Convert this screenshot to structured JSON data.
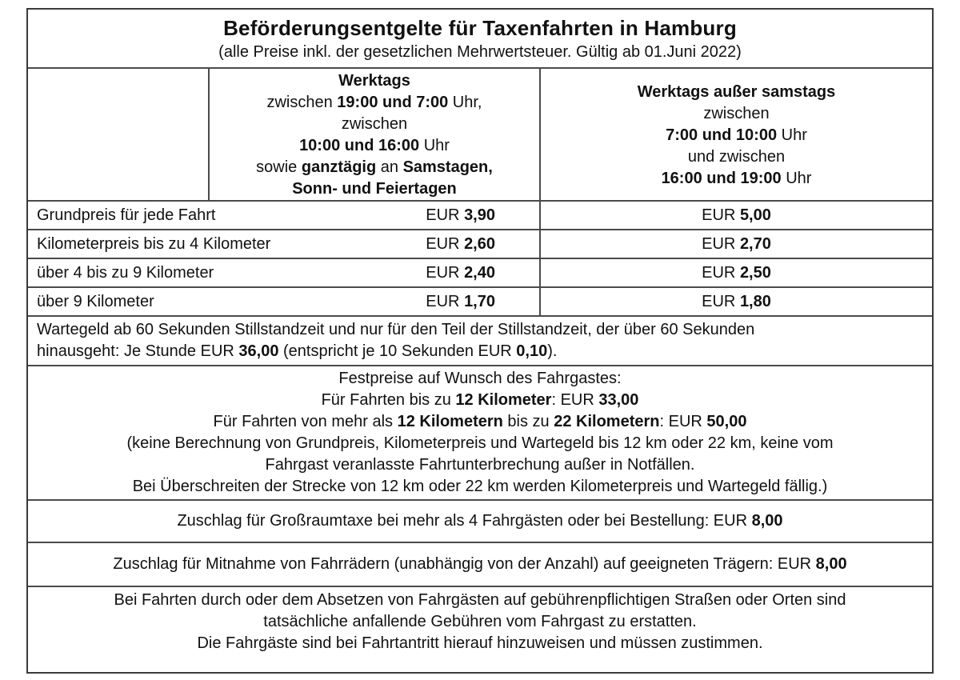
{
  "title": "Beförderungsentgelte für Taxenfahrten in Hamburg",
  "subtitle": "(alle Preise inkl. der gesetzlichen Mehrwertsteuer. Gültig ab 01.Juni 2022)",
  "labels": {
    "currency": "EUR"
  },
  "header": {
    "tariff1_lines": [
      [
        [
          "Werktags",
          1
        ]
      ],
      [
        [
          "zwischen ",
          0
        ],
        [
          "19:00 und 7:00",
          1
        ],
        [
          " Uhr,",
          0
        ]
      ],
      [
        [
          "zwischen",
          0
        ]
      ],
      [
        [
          "10:00 und 16:00",
          1
        ],
        [
          " Uhr",
          0
        ]
      ],
      [
        [
          "sowie ",
          0
        ],
        [
          "ganztägig",
          1
        ],
        [
          " an ",
          0
        ],
        [
          "Samstagen,",
          1
        ]
      ],
      [
        [
          "Sonn- und Feiertagen",
          1
        ]
      ]
    ],
    "tariff2_lines": [
      [
        [
          "Werktags außer samstags",
          1
        ]
      ],
      [
        [
          "zwischen",
          0
        ]
      ],
      [
        [
          "7:00 und 10:00",
          1
        ],
        [
          " Uhr",
          0
        ]
      ],
      [
        [
          "und zwischen",
          0
        ]
      ],
      [
        [
          "16:00 und 19:00",
          1
        ],
        [
          " Uhr",
          0
        ]
      ]
    ]
  },
  "fare_rows": [
    {
      "label": "Grundpreis für jede Fahrt",
      "tariff1": "3,90",
      "tariff2": "5,00"
    },
    {
      "label": "Kilometerpreis bis zu 4 Kilometer",
      "tariff1": "2,60",
      "tariff2": "2,70"
    },
    {
      "label": "über 4 bis zu 9 Kilometer",
      "tariff1": "2,40",
      "tariff2": "2,50"
    },
    {
      "label": "über 9 Kilometer",
      "tariff1": "1,70",
      "tariff2": "1,80"
    }
  ],
  "waiting_fee": {
    "lines": [
      [
        [
          "Wartegeld ab 60 Sekunden Stillstandzeit und nur für den Teil der Stillstandzeit, der über 60 Sekunden",
          0
        ]
      ],
      [
        [
          "hinausgeht: Je Stunde EUR ",
          0
        ],
        [
          "36,00",
          1
        ],
        [
          " (entspricht je 10 Sekunden EUR ",
          0
        ],
        [
          "0,10",
          1
        ],
        [
          ").",
          0
        ]
      ]
    ]
  },
  "fixed_prices": {
    "lines": [
      [
        [
          "Festpreise auf Wunsch des Fahrgastes:",
          0
        ]
      ],
      [
        [
          "Für Fahrten bis zu ",
          0
        ],
        [
          "12 Kilometer",
          1
        ],
        [
          ": EUR ",
          0
        ],
        [
          "33,00",
          1
        ]
      ],
      [
        [
          "Für Fahrten von mehr als ",
          0
        ],
        [
          "12 Kilometern",
          1
        ],
        [
          " bis zu ",
          0
        ],
        [
          "22 Kilometern",
          1
        ],
        [
          ": EUR ",
          0
        ],
        [
          "50,00",
          1
        ]
      ],
      [
        [
          "(keine Berechnung von Grundpreis, Kilometerpreis und Wartegeld bis 12 km oder 22 km, keine vom",
          0
        ]
      ],
      [
        [
          "Fahrgast veranlasste Fahrtunterbrechung außer in Notfällen.",
          0
        ]
      ],
      [
        [
          "Bei Überschreiten der Strecke von 12 km oder 22 km werden Kilometerpreis und Wartegeld fällig.)",
          0
        ]
      ]
    ]
  },
  "surcharges": {
    "large_taxi": [
      [
        "Zuschlag für Großraumtaxe bei mehr als 4 Fahrgästen oder bei Bestellung: EUR ",
        0
      ],
      [
        "8,00",
        1
      ]
    ],
    "bicycles": [
      [
        "Zuschlag für Mitnahme von Fahrrädern (unabhängig von der Anzahl) auf geeigneten Trägern: EUR ",
        0
      ],
      [
        "8,00",
        1
      ]
    ]
  },
  "toll_note": {
    "lines": [
      "Bei Fahrten durch oder dem Absetzen von Fahrgästen auf gebührenpflichtigen Straßen oder Orten sind",
      "tatsächliche anfallende Gebühren vom Fahrgast zu erstatten.",
      "Die Fahrgäste sind bei Fahrtantritt hierauf hinzuweisen und müssen zustimmen."
    ]
  }
}
